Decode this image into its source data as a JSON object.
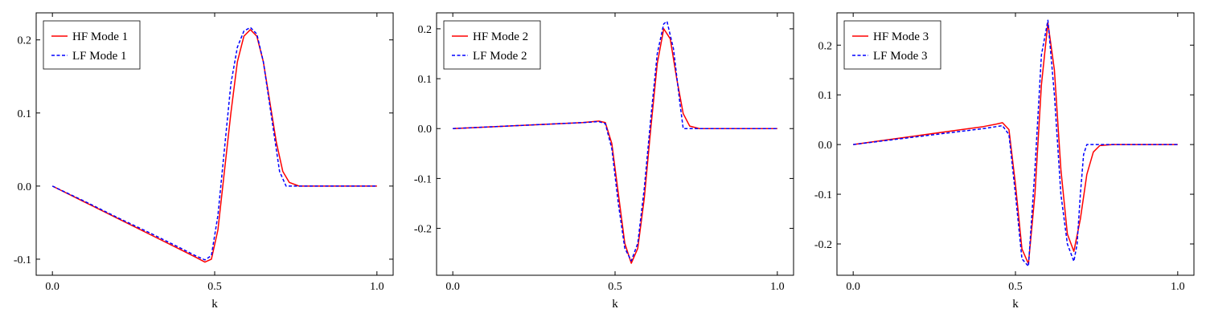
{
  "chart_data": [
    {
      "type": "line",
      "xlabel": "k",
      "ylabel": "",
      "xlim": [
        -0.05,
        1.05
      ],
      "ylim": [
        -0.122,
        0.237
      ],
      "xticks": [
        0.0,
        0.5,
        1.0
      ],
      "xtick_labels": [
        "0.0",
        "0.5",
        "1.0"
      ],
      "yticks": [
        -0.1,
        0.0,
        0.1,
        0.2
      ],
      "ytick_labels": [
        "-0.1",
        "0.0",
        "0.1",
        "0.2"
      ],
      "grid": false,
      "legend": "top-left",
      "series": [
        {
          "name": "HF Mode 1",
          "color": "#ff0000",
          "dash": "solid",
          "x": [
            0.0,
            0.1,
            0.2,
            0.3,
            0.4,
            0.44,
            0.47,
            0.49,
            0.51,
            0.53,
            0.55,
            0.57,
            0.59,
            0.61,
            0.63,
            0.65,
            0.67,
            0.69,
            0.71,
            0.73,
            0.76,
            0.8,
            0.9,
            1.0
          ],
          "y": [
            0.0,
            -0.022,
            -0.044,
            -0.066,
            -0.088,
            -0.097,
            -0.104,
            -0.1,
            -0.06,
            0.02,
            0.1,
            0.17,
            0.205,
            0.214,
            0.205,
            0.17,
            0.115,
            0.06,
            0.02,
            0.005,
            0.0,
            0.0,
            0.0,
            0.0
          ]
        },
        {
          "name": "LF Mode 1",
          "color": "#0000ff",
          "dash": "dashed",
          "x": [
            0.0,
            0.1,
            0.2,
            0.3,
            0.4,
            0.44,
            0.47,
            0.49,
            0.51,
            0.53,
            0.55,
            0.57,
            0.59,
            0.61,
            0.63,
            0.65,
            0.67,
            0.69,
            0.7,
            0.72,
            0.76,
            0.8,
            0.9,
            1.0
          ],
          "y": [
            0.0,
            -0.021,
            -0.043,
            -0.064,
            -0.086,
            -0.095,
            -0.101,
            -0.095,
            -0.04,
            0.05,
            0.14,
            0.19,
            0.212,
            0.217,
            0.208,
            0.17,
            0.11,
            0.05,
            0.02,
            0.0,
            0.0,
            0.0,
            0.0,
            0.0
          ]
        }
      ]
    },
    {
      "type": "line",
      "xlabel": "k",
      "ylabel": "",
      "xlim": [
        -0.05,
        1.05
      ],
      "ylim": [
        -0.294,
        0.232
      ],
      "xticks": [
        0.0,
        0.5,
        1.0
      ],
      "xtick_labels": [
        "0.0",
        "0.5",
        "1.0"
      ],
      "yticks": [
        -0.2,
        -0.1,
        0.0,
        0.1,
        0.2
      ],
      "ytick_labels": [
        "-0.2",
        "-0.1",
        "0.0",
        "0.1",
        "0.2"
      ],
      "grid": false,
      "legend": "top-left",
      "series": [
        {
          "name": "HF Mode 2",
          "color": "#ff0000",
          "dash": "solid",
          "x": [
            0.0,
            0.1,
            0.2,
            0.3,
            0.4,
            0.45,
            0.47,
            0.49,
            0.51,
            0.53,
            0.55,
            0.57,
            0.59,
            0.61,
            0.63,
            0.65,
            0.67,
            0.69,
            0.71,
            0.73,
            0.76,
            0.8,
            0.9,
            1.0
          ],
          "y": [
            0.0,
            0.003,
            0.006,
            0.009,
            0.012,
            0.015,
            0.012,
            -0.03,
            -0.13,
            -0.23,
            -0.27,
            -0.24,
            -0.14,
            0.0,
            0.13,
            0.2,
            0.18,
            0.1,
            0.03,
            0.005,
            0.0,
            0.0,
            0.0,
            0.0
          ]
        },
        {
          "name": "LF Mode 2",
          "color": "#0000ff",
          "dash": "dashed",
          "x": [
            0.0,
            0.1,
            0.2,
            0.3,
            0.4,
            0.45,
            0.47,
            0.49,
            0.51,
            0.53,
            0.55,
            0.57,
            0.59,
            0.61,
            0.63,
            0.65,
            0.66,
            0.68,
            0.7,
            0.71,
            0.73,
            0.8,
            0.9,
            1.0
          ],
          "y": [
            0.0,
            0.003,
            0.006,
            0.009,
            0.012,
            0.014,
            0.01,
            -0.04,
            -0.15,
            -0.24,
            -0.265,
            -0.23,
            -0.12,
            0.02,
            0.15,
            0.21,
            0.215,
            0.16,
            0.05,
            0.0,
            0.0,
            0.0,
            0.0,
            0.0
          ]
        }
      ]
    },
    {
      "type": "line",
      "xlabel": "k",
      "ylabel": "",
      "xlim": [
        -0.05,
        1.05
      ],
      "ylim": [
        -0.263,
        0.265
      ],
      "xticks": [
        0.0,
        0.5,
        1.0
      ],
      "xtick_labels": [
        "0.0",
        "0.5",
        "1.0"
      ],
      "yticks": [
        -0.2,
        -0.1,
        0.0,
        0.1,
        0.2
      ],
      "ytick_labels": [
        "-0.2",
        "-0.1",
        "0.0",
        "0.1",
        "0.2"
      ],
      "grid": false,
      "legend": "top-left",
      "series": [
        {
          "name": "HF Mode 3",
          "color": "#ff0000",
          "dash": "solid",
          "x": [
            0.0,
            0.1,
            0.2,
            0.3,
            0.4,
            0.44,
            0.46,
            0.48,
            0.5,
            0.52,
            0.54,
            0.56,
            0.58,
            0.6,
            0.62,
            0.64,
            0.66,
            0.68,
            0.7,
            0.72,
            0.74,
            0.76,
            0.8,
            0.9,
            1.0
          ],
          "y": [
            0.0,
            0.009,
            0.018,
            0.027,
            0.036,
            0.041,
            0.044,
            0.03,
            -0.08,
            -0.21,
            -0.24,
            -0.1,
            0.12,
            0.245,
            0.15,
            -0.05,
            -0.18,
            -0.215,
            -0.15,
            -0.06,
            -0.015,
            -0.002,
            0.0,
            0.0,
            0.0
          ]
        },
        {
          "name": "LF Mode 3",
          "color": "#0000ff",
          "dash": "dashed",
          "x": [
            0.0,
            0.1,
            0.2,
            0.3,
            0.4,
            0.44,
            0.46,
            0.48,
            0.5,
            0.52,
            0.54,
            0.56,
            0.58,
            0.6,
            0.62,
            0.64,
            0.66,
            0.68,
            0.69,
            0.7,
            0.71,
            0.72,
            0.8,
            0.9,
            1.0
          ],
          "y": [
            0.0,
            0.008,
            0.016,
            0.024,
            0.032,
            0.036,
            0.038,
            0.02,
            -0.1,
            -0.23,
            -0.245,
            -0.05,
            0.18,
            0.25,
            0.1,
            -0.1,
            -0.2,
            -0.235,
            -0.2,
            -0.1,
            -0.02,
            0.0,
            0.0,
            0.0,
            0.0
          ]
        }
      ]
    }
  ]
}
